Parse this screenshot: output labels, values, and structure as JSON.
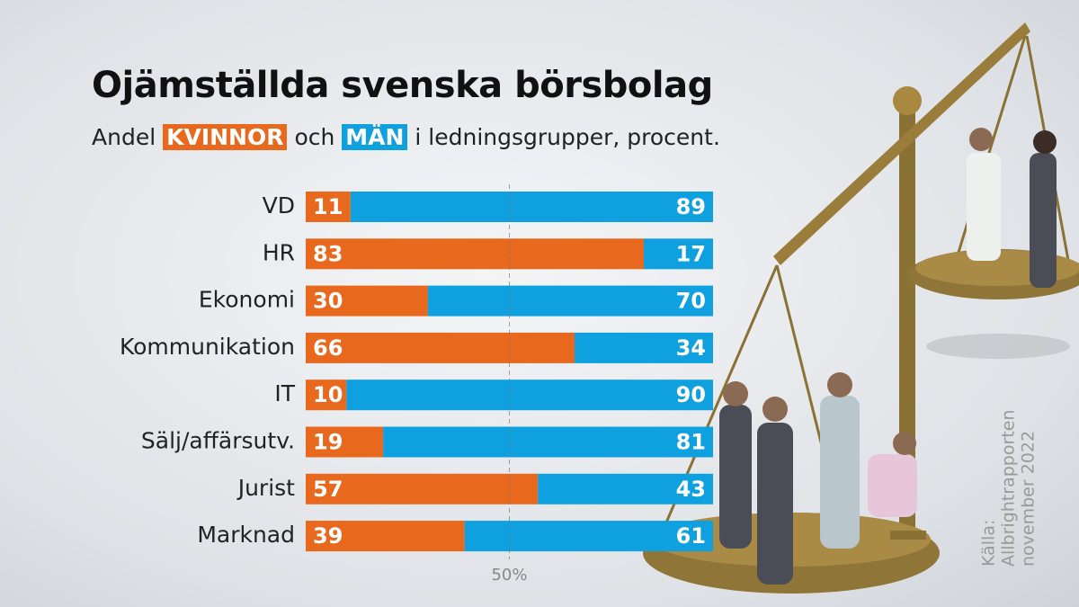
{
  "chart_data": {
    "type": "bar",
    "orientation": "horizontal",
    "stacked": true,
    "title": "Ojämställda svenska börsbolag",
    "subtitle_prefix": "Andel",
    "subtitle_joiner": "och",
    "subtitle_suffix": "i ledningsgrupper, procent.",
    "categories": [
      "VD",
      "HR",
      "Ekonomi",
      "Kommunikation",
      "IT",
      "Sälj/affärsutv.",
      "Jurist",
      "Marknad"
    ],
    "series": [
      {
        "name": "KVINNOR",
        "color": "#e8681e",
        "values": [
          11,
          83,
          30,
          66,
          10,
          19,
          57,
          39
        ]
      },
      {
        "name": "MÄN",
        "color": "#0fa0e0",
        "values": [
          89,
          17,
          70,
          34,
          90,
          81,
          43,
          61
        ]
      }
    ],
    "xlim": [
      0,
      100
    ],
    "xticks": [
      {
        "value": 50,
        "label": "50%"
      }
    ],
    "source": [
      "Källa:",
      "Allbrightrapporten",
      "november 2022"
    ]
  }
}
